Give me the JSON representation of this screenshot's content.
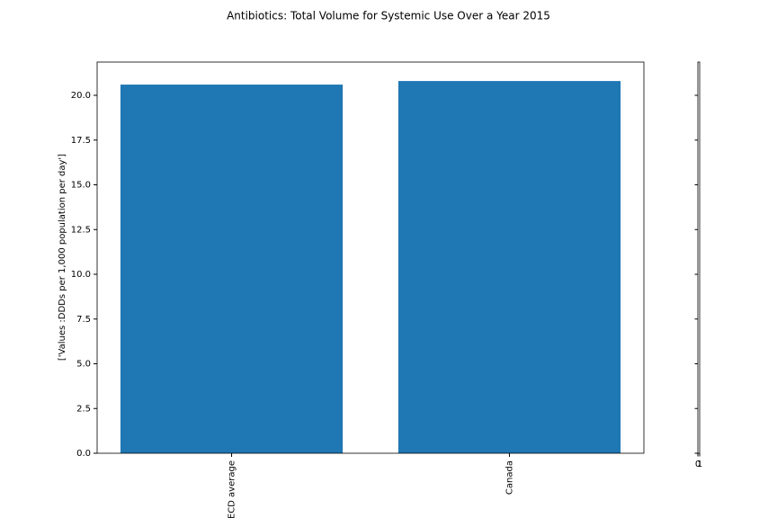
{
  "chart_data": [
    {
      "type": "bar",
      "title": "Antibiotics: Total Volume for Systemic Use Over a Year 2015",
      "ylabel": "['Values :DDDs per 1,000 population per day']",
      "categories": [
        "OECD average",
        "Canada"
      ],
      "values": [
        20.6,
        20.8
      ],
      "color": "#1f77b4",
      "ylim": [
        0,
        21.86
      ],
      "yticks": [
        {
          "value": 0,
          "label": "0.0"
        },
        {
          "value": 2.5,
          "label": "2.5"
        },
        {
          "value": 5,
          "label": "5.0"
        },
        {
          "value": 7.5,
          "label": "7.5"
        },
        {
          "value": 10,
          "label": "10.0"
        },
        {
          "value": 12.5,
          "label": "12.5"
        },
        {
          "value": 15,
          "label": "15.0"
        },
        {
          "value": 17.5,
          "label": "17.5"
        },
        {
          "value": 20,
          "label": "20.0"
        }
      ]
    },
    {
      "type": "empty",
      "xlim": [
        0,
        1
      ],
      "xticks": [
        0,
        1
      ]
    }
  ]
}
